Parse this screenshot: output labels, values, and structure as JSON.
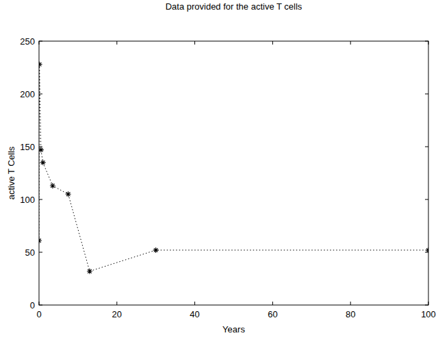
{
  "chart_data": {
    "type": "line",
    "title": "Data provided for the active T cells",
    "x_label": "Years",
    "y_label": "active T Cells",
    "x": [
      0,
      0.1,
      0.5,
      1,
      3.5,
      7.5,
      13,
      30,
      100
    ],
    "series": [
      {
        "name": "active T cells",
        "color": "#000000",
        "marker": "asterisk",
        "line_style": "dotted",
        "values": [
          61,
          228,
          147,
          135,
          113,
          105,
          32,
          52,
          52
        ]
      }
    ],
    "xlim": [
      0,
      100
    ],
    "xticks": [
      0,
      20,
      40,
      60,
      80,
      100
    ],
    "ylim": [
      0,
      250
    ],
    "yticks": [
      0,
      50,
      100,
      150,
      200,
      250
    ],
    "grid": false
  }
}
